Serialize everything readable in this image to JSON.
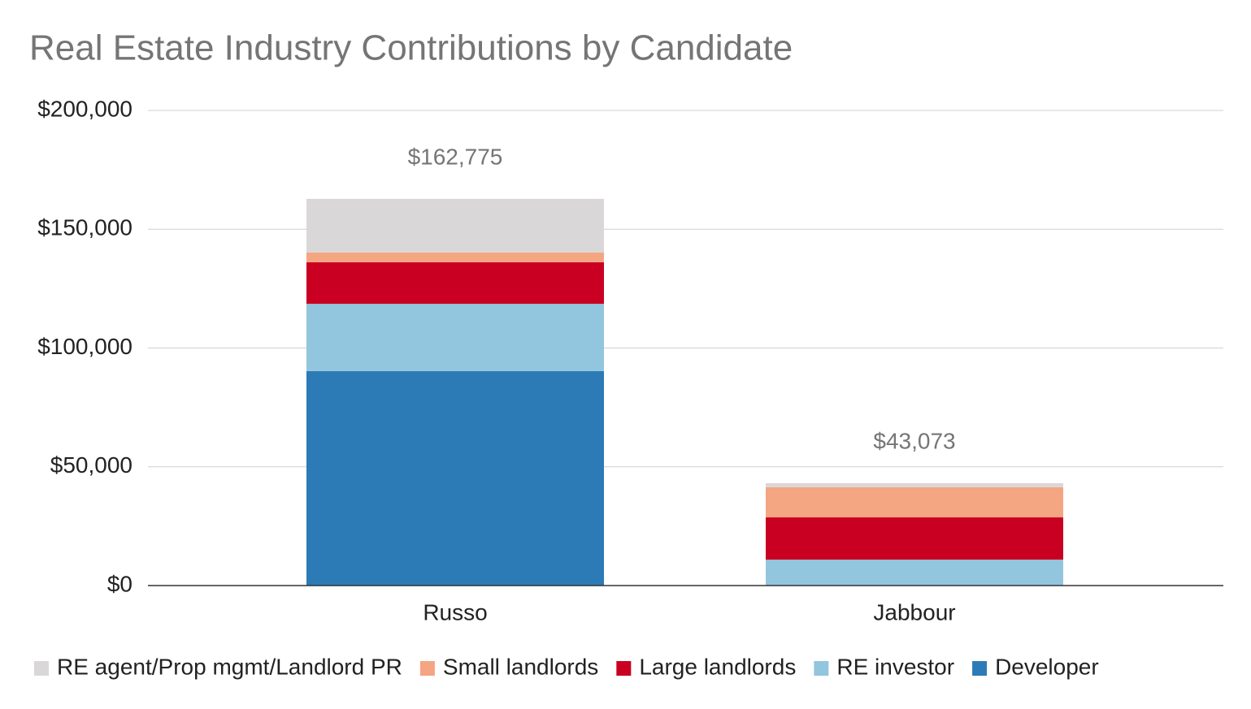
{
  "chart_data": {
    "type": "stacked-bar",
    "title": "Real Estate Industry Contributions by Candidate",
    "categories": [
      "Russo",
      "Jabbour"
    ],
    "series": [
      {
        "name": "RE agent/Prop mgmt/Landlord PR",
        "color": "#d9d7d8",
        "values": [
          22575,
          1673
        ]
      },
      {
        "name": "Small landlords",
        "color": "#f4a582",
        "values": [
          4100,
          12700
        ]
      },
      {
        "name": "Large landlords",
        "color": "#c90022",
        "values": [
          17500,
          17800
        ]
      },
      {
        "name": "RE investor",
        "color": "#92c5de",
        "values": [
          28300,
          10900
        ]
      },
      {
        "name": "Developer",
        "color": "#2c7bb6",
        "values": [
          90300,
          0
        ]
      }
    ],
    "totals": {
      "values": [
        162775,
        43073
      ],
      "value_labels": [
        "$162,775",
        "$43,073"
      ]
    },
    "ylim": [
      0,
      200000
    ],
    "yticks": [
      {
        "value": 0,
        "label": "$0"
      },
      {
        "value": 50000,
        "label": "$50,000"
      },
      {
        "value": 100000,
        "label": "$100,000"
      },
      {
        "value": 150000,
        "label": "$150,000"
      },
      {
        "value": 200000,
        "label": "$200,000"
      }
    ],
    "grid": true,
    "legend": "bottom"
  }
}
